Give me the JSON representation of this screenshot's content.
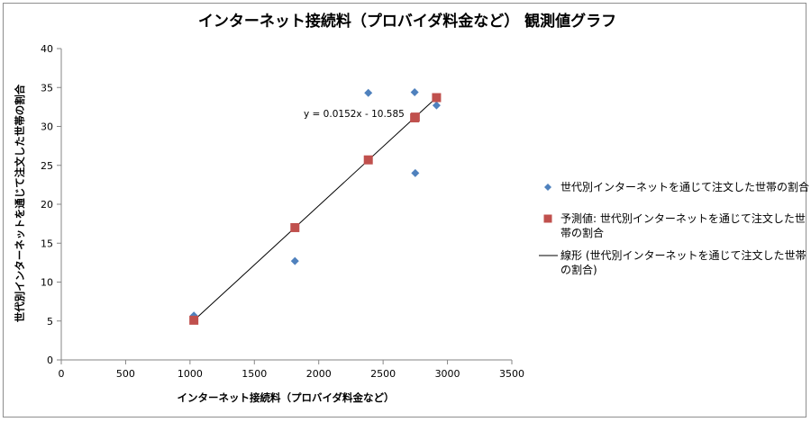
{
  "chart_data": {
    "type": "scatter",
    "title": "インターネット接続料（プロバイダ料金など） 観測値グラフ",
    "xlabel": "インターネット接続料（プロバイダ料金など）",
    "ylabel": "世代別インターネットを通じて注文した世帯の割合",
    "xlim": [
      0,
      3500
    ],
    "ylim": [
      0,
      40
    ],
    "xticks": [
      0,
      500,
      1000,
      1500,
      2000,
      2500,
      3000,
      3500
    ],
    "yticks": [
      0,
      5,
      10,
      15,
      20,
      25,
      30,
      35,
      40
    ],
    "grid": false,
    "legend_position": "right",
    "series": [
      {
        "name": "世代別インターネットを通じて注文した世帯の割合",
        "marker": "diamond",
        "color": "#4f81bd",
        "x": [
          1030,
          1815,
          2385,
          2745,
          2750,
          2915
        ],
        "y": [
          5.7,
          12.7,
          34.3,
          34.4,
          24.0,
          32.7
        ]
      },
      {
        "name": "予測値: 世代別インターネットを通じて注文した世帯の割合",
        "marker": "square",
        "color": "#c0504d",
        "x": [
          1030,
          1815,
          2385,
          2745,
          2750,
          2915
        ],
        "y": [
          5.1,
          17.0,
          25.7,
          31.1,
          31.2,
          33.7
        ]
      },
      {
        "name": "線形 (世代別インターネットを通じて注文した世帯の割合)",
        "type": "line",
        "color": "#000000",
        "x": [
          1030,
          2915
        ],
        "y": [
          5.07,
          33.72
        ]
      }
    ],
    "annotation": "y = 0.0152x - 10.585"
  },
  "legend": {
    "items": [
      {
        "lines": [
          "世代別インターネットを通じて注文した世帯の割合"
        ]
      },
      {
        "lines": [
          "予測値: 世代別インターネットを通じて注文した世",
          "帯の割合"
        ]
      },
      {
        "lines": [
          "線形 (世代別インターネットを通じて注文した世帯",
          "の割合)"
        ]
      }
    ]
  }
}
